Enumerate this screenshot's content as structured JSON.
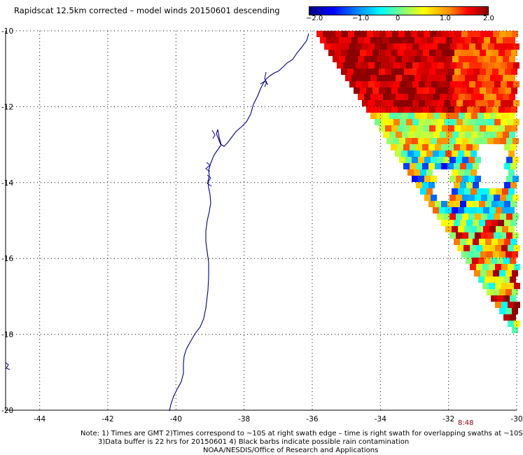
{
  "title": "Rapidscat 12.5km corrected – model winds 20150601 descending",
  "colorbar": {
    "ticks": [
      "−2.0",
      "−1.0",
      "0",
      "1.0",
      "2.0"
    ],
    "min": -2.0,
    "max": 2.0
  },
  "map": {
    "lon_range": [
      -45,
      -30
    ],
    "lat_range": [
      -20,
      -10
    ],
    "lon_ticks": [
      "-44",
      "-42",
      "-40",
      "-38",
      "-36",
      "-34",
      "-32",
      "-30"
    ],
    "lat_ticks": [
      "-10",
      "-12",
      "-14",
      "-16",
      "-18",
      "-20"
    ],
    "grid": true,
    "coast_color": "#000080"
  },
  "time_label": "8:48",
  "notes": {
    "line1": "Note: 1) Times are GMT 2)Times correspond to ~10S at right swath edge – time is right swath for overlapping swaths at ~10S",
    "line2": "3)Data buffer is 22 hrs for 20150601 4) Black barbs indicate possible rain contamination",
    "line3": "NOAA/NESDIS/Office of Research and Applications"
  }
}
